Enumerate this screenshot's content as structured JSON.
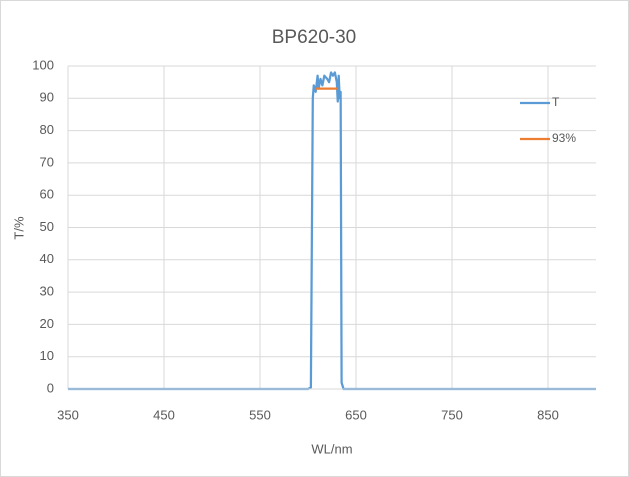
{
  "chart_data": {
    "type": "line",
    "title": "BP620-30",
    "x_label": "WL/nm",
    "y_label": "T/%",
    "xlim": [
      350,
      900
    ],
    "xticks": [
      350,
      450,
      550,
      650,
      750,
      850
    ],
    "ylim": [
      0,
      100
    ],
    "yticks": [
      0,
      10,
      20,
      30,
      40,
      50,
      60,
      70,
      80,
      90,
      100
    ],
    "grid": true,
    "legend": "right",
    "series": [
      {
        "name": "T",
        "color": "#5b9bd5",
        "x": [
          350,
          600,
          603,
          605,
          606,
          608,
          610,
          611,
          613,
          615,
          617,
          620,
          622,
          624,
          626,
          628,
          630,
          631,
          632,
          633,
          634,
          635,
          637,
          900
        ],
        "values": [
          0,
          0,
          0.5,
          90,
          94,
          92,
          97,
          93,
          96,
          94,
          97,
          96,
          95,
          98,
          97,
          98,
          95,
          89,
          97,
          90,
          92,
          2,
          0,
          0
        ]
      },
      {
        "name": "93%",
        "color": "#ed7d31",
        "x": [
          608,
          631
        ],
        "values": [
          93,
          93
        ]
      }
    ]
  }
}
